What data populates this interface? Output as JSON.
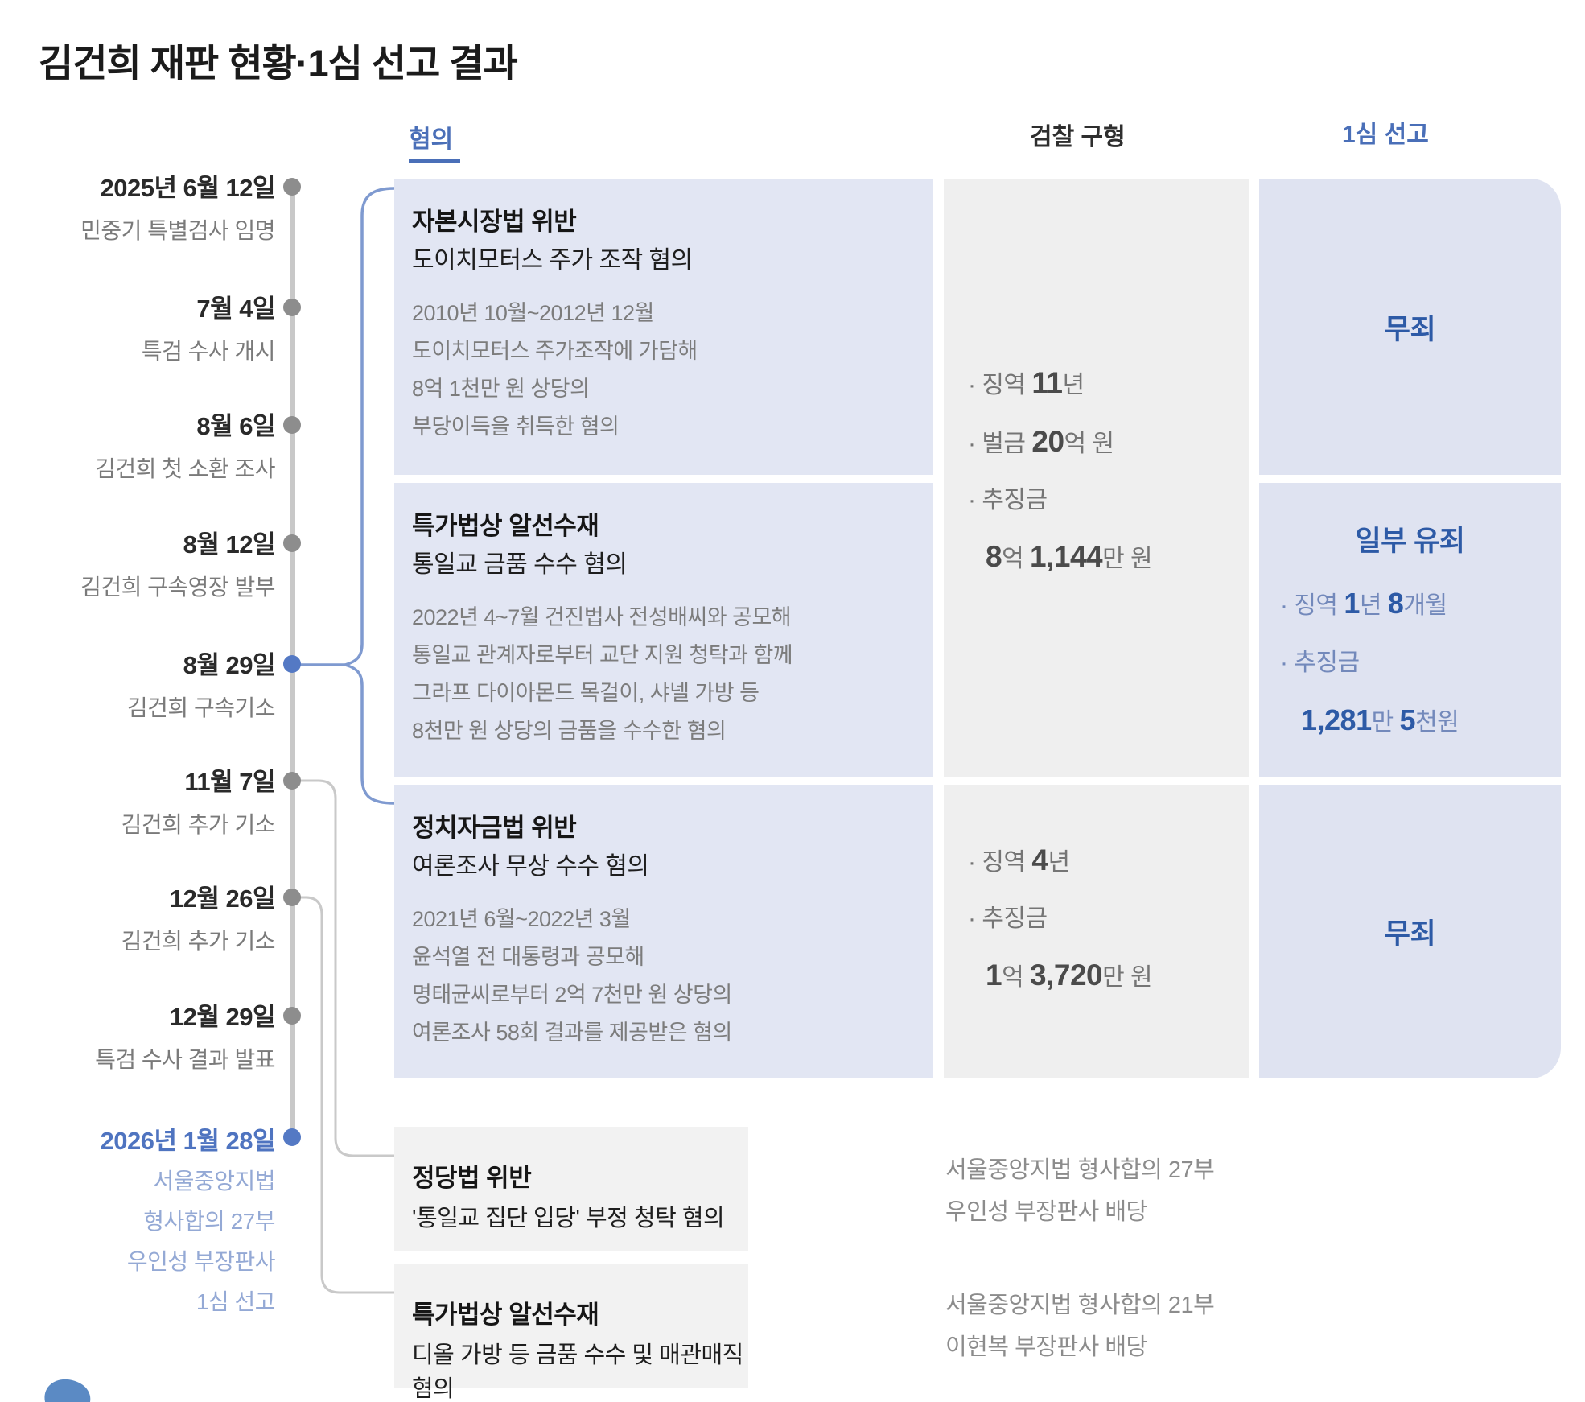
{
  "title": "김건희 재판 현황·1심 선고 결과",
  "colors": {
    "accent_blue": "#4a6fb8",
    "verdict_blue": "#2d5aa6",
    "charge_box_bg": "#e2e6f3",
    "prosecution_box_bg": "#efefef",
    "verdict_box_bg": "#dfe3f1",
    "extra_box_bg": "#f2f2f2",
    "timeline_gray": "#c8c8c8",
    "dot_gray": "#8d8d8d",
    "dot_blue": "#5479c4"
  },
  "columns": {
    "charges": "혐의",
    "prosecution": "검찰 구형",
    "verdict": "1심 선고"
  },
  "timeline": [
    {
      "date": "2025년 6월 12일",
      "desc": "민중기 특별검사 임명"
    },
    {
      "date": "7월 4일",
      "desc": "특검 수사 개시"
    },
    {
      "date": "8월 6일",
      "desc": "김건희 첫 소환 조사"
    },
    {
      "date": "8월 12일",
      "desc": "김건희 구속영장 발부"
    },
    {
      "date": "8월 29일",
      "desc": "김건희 구속기소"
    },
    {
      "date": "11월 7일",
      "desc": "김건희 추가 기소"
    },
    {
      "date": "12월 26일",
      "desc": "김건희 추가 기소"
    },
    {
      "date": "12월 29일",
      "desc": "특검 수사 결과 발표"
    },
    {
      "date": "2026년 1월 28일",
      "desc_lines": [
        "서울중앙지법",
        "형사합의 27부",
        "우인성 부장판사",
        "1심 선고"
      ]
    }
  ],
  "charges": [
    {
      "title": "자본시장법 위반",
      "subtitle": "도이치모터스 주가 조작 혐의",
      "details": [
        "2010년 10월~2012년 12월",
        "도이치모터스 주가조작에 가담해",
        "8억 1천만 원 상당의",
        "부당이득을 취득한 혐의"
      ]
    },
    {
      "title": "특가법상 알선수재",
      "subtitle": "통일교 금품 수수 혐의",
      "details": [
        "2022년 4~7월 건진법사 전성배씨와 공모해",
        "통일교 관계자로부터 교단 지원 청탁과 함께",
        "그라프 다이아몬드 목걸이, 샤넬 가방 등",
        "8천만 원 상당의 금품을 수수한 혐의"
      ]
    },
    {
      "title": "정치자금법 위반",
      "subtitle": "여론조사 무상 수수 혐의",
      "details": [
        "2021년 6월~2022년 3월",
        "윤석열 전 대통령과 공모해",
        "명태균씨로부터 2억 7천만 원 상당의",
        "여론조사 58회 결과를 제공받은 혐의"
      ]
    }
  ],
  "prosecution": [
    {
      "lines": [
        {
          "indent": false,
          "segs": [
            {
              "t": "· 징역 ",
              "b": false
            },
            {
              "t": "11",
              "b": true
            },
            {
              "t": "년",
              "b": false
            }
          ]
        },
        {
          "indent": false,
          "segs": [
            {
              "t": "· 벌금 ",
              "b": false
            },
            {
              "t": "20",
              "b": true
            },
            {
              "t": "억 원",
              "b": false
            }
          ]
        },
        {
          "indent": false,
          "segs": [
            {
              "t": "· 추징금",
              "b": false
            }
          ]
        },
        {
          "indent": true,
          "segs": [
            {
              "t": "8",
              "b": true
            },
            {
              "t": "억 ",
              "b": false
            },
            {
              "t": "1,144",
              "b": true
            },
            {
              "t": "만 원",
              "b": false
            }
          ]
        }
      ]
    },
    {
      "lines": [
        {
          "indent": false,
          "segs": [
            {
              "t": "· 징역 ",
              "b": false
            },
            {
              "t": "4",
              "b": true
            },
            {
              "t": "년",
              "b": false
            }
          ]
        },
        {
          "indent": false,
          "segs": [
            {
              "t": "· 추징금",
              "b": false
            }
          ]
        },
        {
          "indent": true,
          "segs": [
            {
              "t": "1",
              "b": true
            },
            {
              "t": "억 ",
              "b": false
            },
            {
              "t": "3,720",
              "b": true
            },
            {
              "t": "만 원",
              "b": false
            }
          ]
        }
      ]
    }
  ],
  "verdicts": [
    {
      "headline": "무죄"
    },
    {
      "headline": "일부 유죄",
      "lines": [
        {
          "indent": false,
          "segs": [
            {
              "t": "· 징역 ",
              "b": false
            },
            {
              "t": "1",
              "b": true
            },
            {
              "t": "년 ",
              "b": false
            },
            {
              "t": "8",
              "b": true
            },
            {
              "t": "개월",
              "b": false
            }
          ]
        },
        {
          "indent": false,
          "segs": [
            {
              "t": "· 추징금",
              "b": false
            }
          ]
        },
        {
          "indent": true,
          "segs": [
            {
              "t": "1,281",
              "b": true
            },
            {
              "t": "만 ",
              "b": false
            },
            {
              "t": "5",
              "b": true
            },
            {
              "t": "천원",
              "b": false
            }
          ]
        }
      ]
    },
    {
      "headline": "무죄"
    }
  ],
  "extra_charges": [
    {
      "title": "정당법 위반",
      "subtitle": "'통일교 집단 입당' 부정 청탁 혐의",
      "court": [
        "서울중앙지법 형사합의 27부",
        "우인성 부장판사 배당"
      ]
    },
    {
      "title": "특가법상 알선수재",
      "subtitle": "디올 가방 등 금품 수수 및 매관매직 혐의",
      "court": [
        "서울중앙지법 형사합의 21부",
        "이현복 부장판사 배당"
      ]
    }
  ]
}
